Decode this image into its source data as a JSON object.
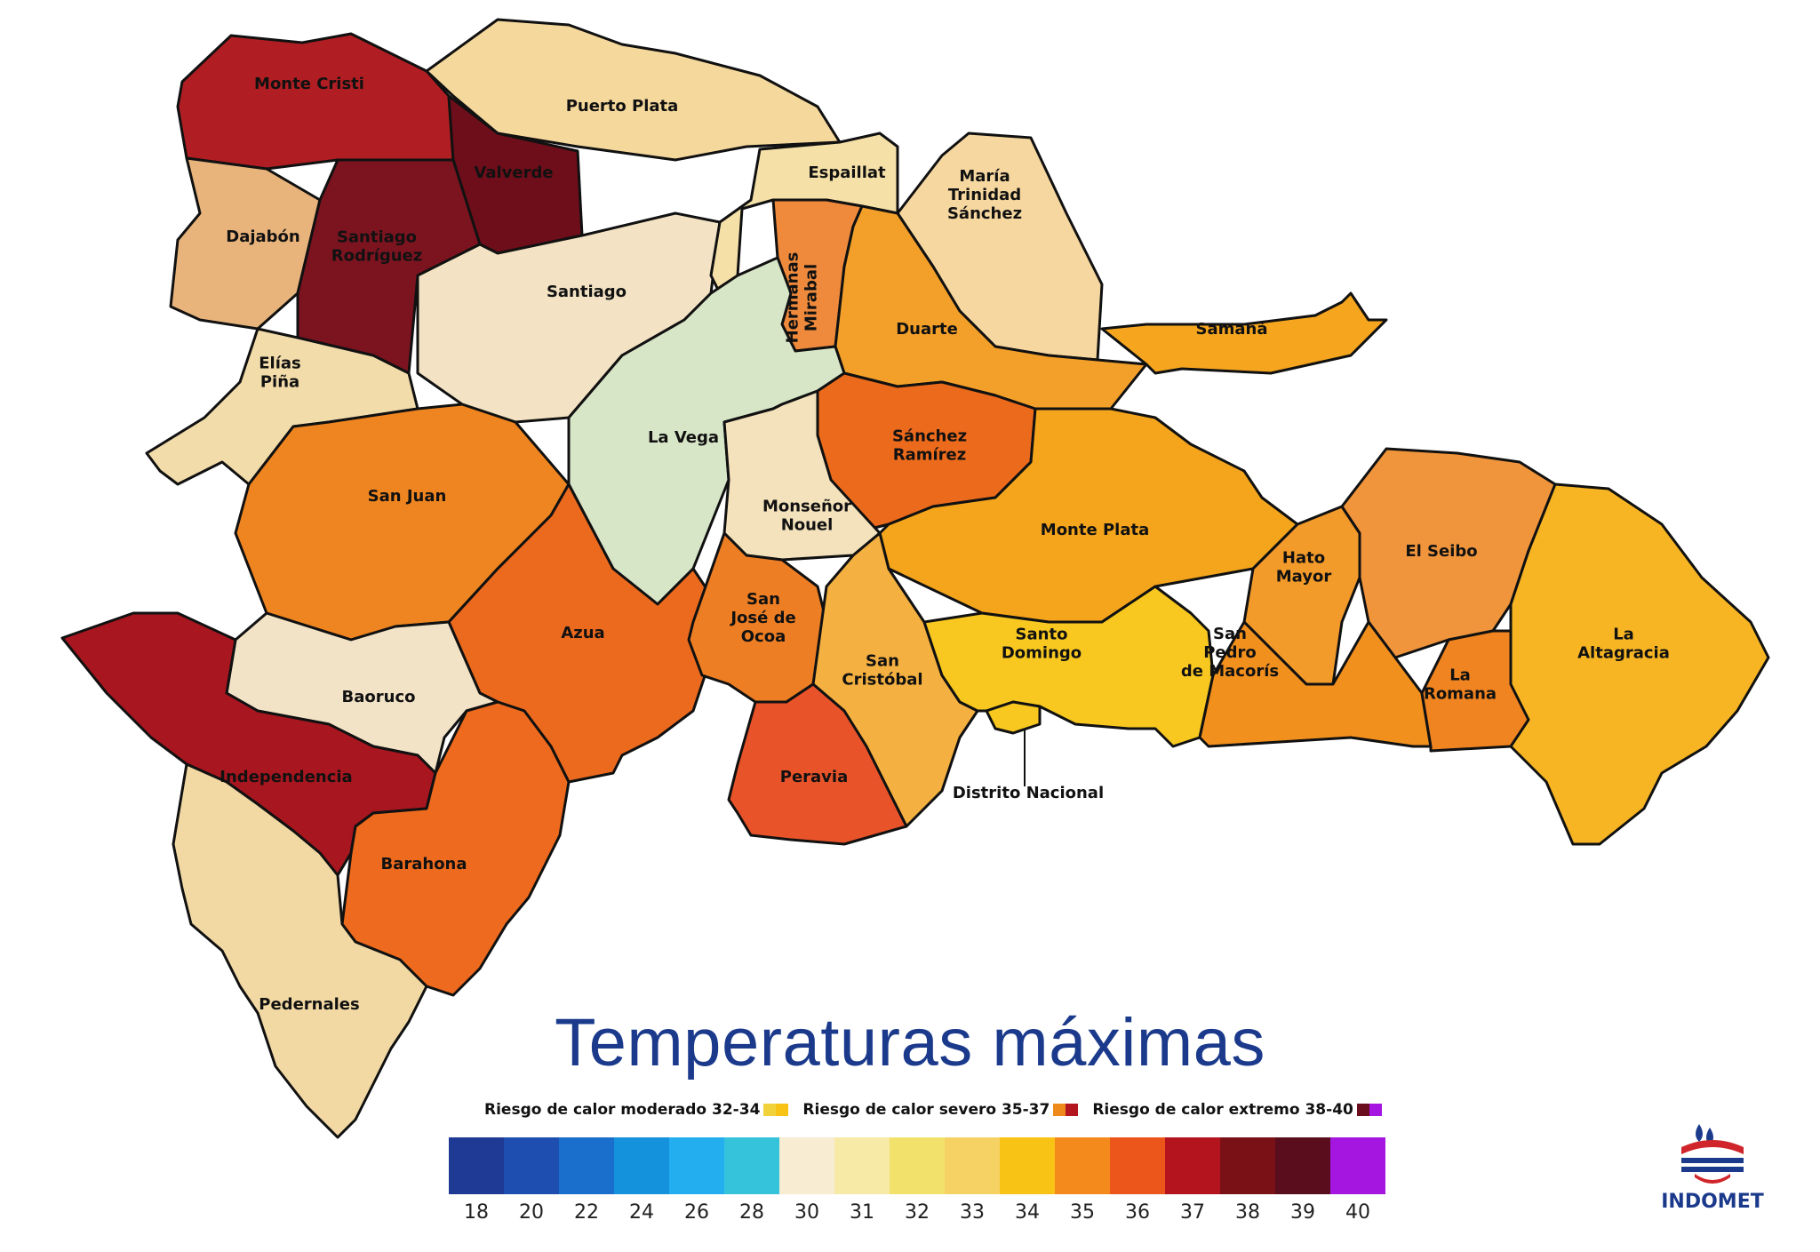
{
  "title": "Temperaturas máximas",
  "risk_legend": [
    {
      "label": "Riesgo de calor moderado 32-34",
      "swatches": [
        "#f2d23a",
        "#f9c316"
      ]
    },
    {
      "label": "Riesgo de calor severo 35-37",
      "swatches": [
        "#ee8a1c",
        "#b3161e"
      ]
    },
    {
      "label": "Riesgo de calor extremo  38-40",
      "swatches": [
        "#6a0d1c",
        "#a516e0"
      ]
    }
  ],
  "color_scale": {
    "colors": [
      "#1e3a94",
      "#1e4fb0",
      "#1a6fcc",
      "#1492dc",
      "#23aeef",
      "#35c3dc",
      "#f8ecd2",
      "#f7eaa6",
      "#f2e16a",
      "#f6d265",
      "#f9c316",
      "#f58a1c",
      "#ec561a",
      "#b4141d",
      "#7a1117",
      "#5a0d1c",
      "#a516e0"
    ],
    "ticks": [
      "18",
      "20",
      "22",
      "24",
      "26",
      "28",
      "30",
      "31",
      "32",
      "33",
      "34",
      "35",
      "36",
      "37",
      "38",
      "39",
      "40"
    ]
  },
  "provinces": [
    {
      "name": "Monte Cristi",
      "lines": [
        "Monte Cristi"
      ],
      "color": "#b01e23"
    },
    {
      "name": "Puerto Plata",
      "lines": [
        "Puerto Plata"
      ],
      "color": "#f5d89c"
    },
    {
      "name": "Valverde",
      "lines": [
        "Valverde"
      ],
      "color": "#6e0e1a"
    },
    {
      "name": "Dajabón",
      "lines": [
        "Dajabón"
      ],
      "color": "#e8b47c"
    },
    {
      "name": "Santiago Rodríguez",
      "lines": [
        "Santiago",
        "Rodríguez"
      ],
      "color": "#7c1420"
    },
    {
      "name": "Santiago",
      "lines": [
        "Santiago"
      ],
      "color": "#f3e3c4"
    },
    {
      "name": "Espaillat",
      "lines": [
        "Espaillat"
      ],
      "color": "#f5e0a8"
    },
    {
      "name": "Hermanas Mirabal",
      "lines": [
        "Hermanas",
        "Mirabal"
      ],
      "color": "#ef8a3c"
    },
    {
      "name": "María Trinidad Sánchez",
      "lines": [
        "María",
        "Trinidad",
        "Sánchez"
      ],
      "color": "#f6d7a0"
    },
    {
      "name": "Duarte",
      "lines": [
        "Duarte"
      ],
      "color": "#f3a02a"
    },
    {
      "name": "Samaná",
      "lines": [
        "Samaná"
      ],
      "color": "#f5a51e"
    },
    {
      "name": "Elías Piña",
      "lines": [
        "Elías",
        "Piña"
      ],
      "color": "#f2dcaa"
    },
    {
      "name": "La Vega",
      "lines": [
        "La Vega"
      ],
      "color": "#d8e6c8"
    },
    {
      "name": "Sánchez Ramírez",
      "lines": [
        "Sánchez",
        "Ramírez"
      ],
      "color": "#ec6a1c"
    },
    {
      "name": "Monseñor Nouel",
      "lines": [
        "Monseñor",
        "Nouel"
      ],
      "color": "#f3e2bc"
    },
    {
      "name": "San Juan",
      "lines": [
        "San Juan"
      ],
      "color": "#ef8520"
    },
    {
      "name": "Monte Plata",
      "lines": [
        "Monte Plata"
      ],
      "color": "#f4a51c"
    },
    {
      "name": "Hato Mayor",
      "lines": [
        "Hato",
        "Mayor"
      ],
      "color": "#f29a2a"
    },
    {
      "name": "El Seibo",
      "lines": [
        "El Seibo"
      ],
      "color": "#f1953c"
    },
    {
      "name": "La Altagracia",
      "lines": [
        "La",
        "Altagracia"
      ],
      "color": "#f7b524"
    },
    {
      "name": "Azua",
      "lines": [
        "Azua"
      ],
      "color": "#ec6a1e"
    },
    {
      "name": "San José de Ocoa",
      "lines": [
        "San",
        "José de",
        "Ocoa"
      ],
      "color": "#ee7e24"
    },
    {
      "name": "San Cristóbal",
      "lines": [
        "San",
        "Cristóbal"
      ],
      "color": "#f4b040"
    },
    {
      "name": "Santo Domingo",
      "lines": [
        "Santo",
        "Domingo"
      ],
      "color": "#f8c820"
    },
    {
      "name": "San Pedro de Macorís",
      "lines": [
        "San",
        "Pedro",
        "de Macorís"
      ],
      "color": "#f2901e"
    },
    {
      "name": "La Romana",
      "lines": [
        "La",
        "Romana"
      ],
      "color": "#f08420"
    },
    {
      "name": "Baoruco",
      "lines": [
        "Baoruco"
      ],
      "color": "#f3e3c6"
    },
    {
      "name": "Independencia",
      "lines": [
        "Independencia"
      ],
      "color": "#a8161f"
    },
    {
      "name": "Peravia",
      "lines": [
        "Peravia"
      ],
      "color": "#e9532a"
    },
    {
      "name": "Barahona",
      "lines": [
        "Barahona"
      ],
      "color": "#ed6a1e"
    },
    {
      "name": "Pedernales",
      "lines": [
        "Pedernales"
      ],
      "color": "#f2d9a4"
    },
    {
      "name": "Distrito Nacional",
      "lines": [
        "Distrito Nacional"
      ],
      "color": "#f8c820"
    }
  ],
  "logo": {
    "text": "INDOMET",
    "icon": "indomet-logo-icon"
  }
}
